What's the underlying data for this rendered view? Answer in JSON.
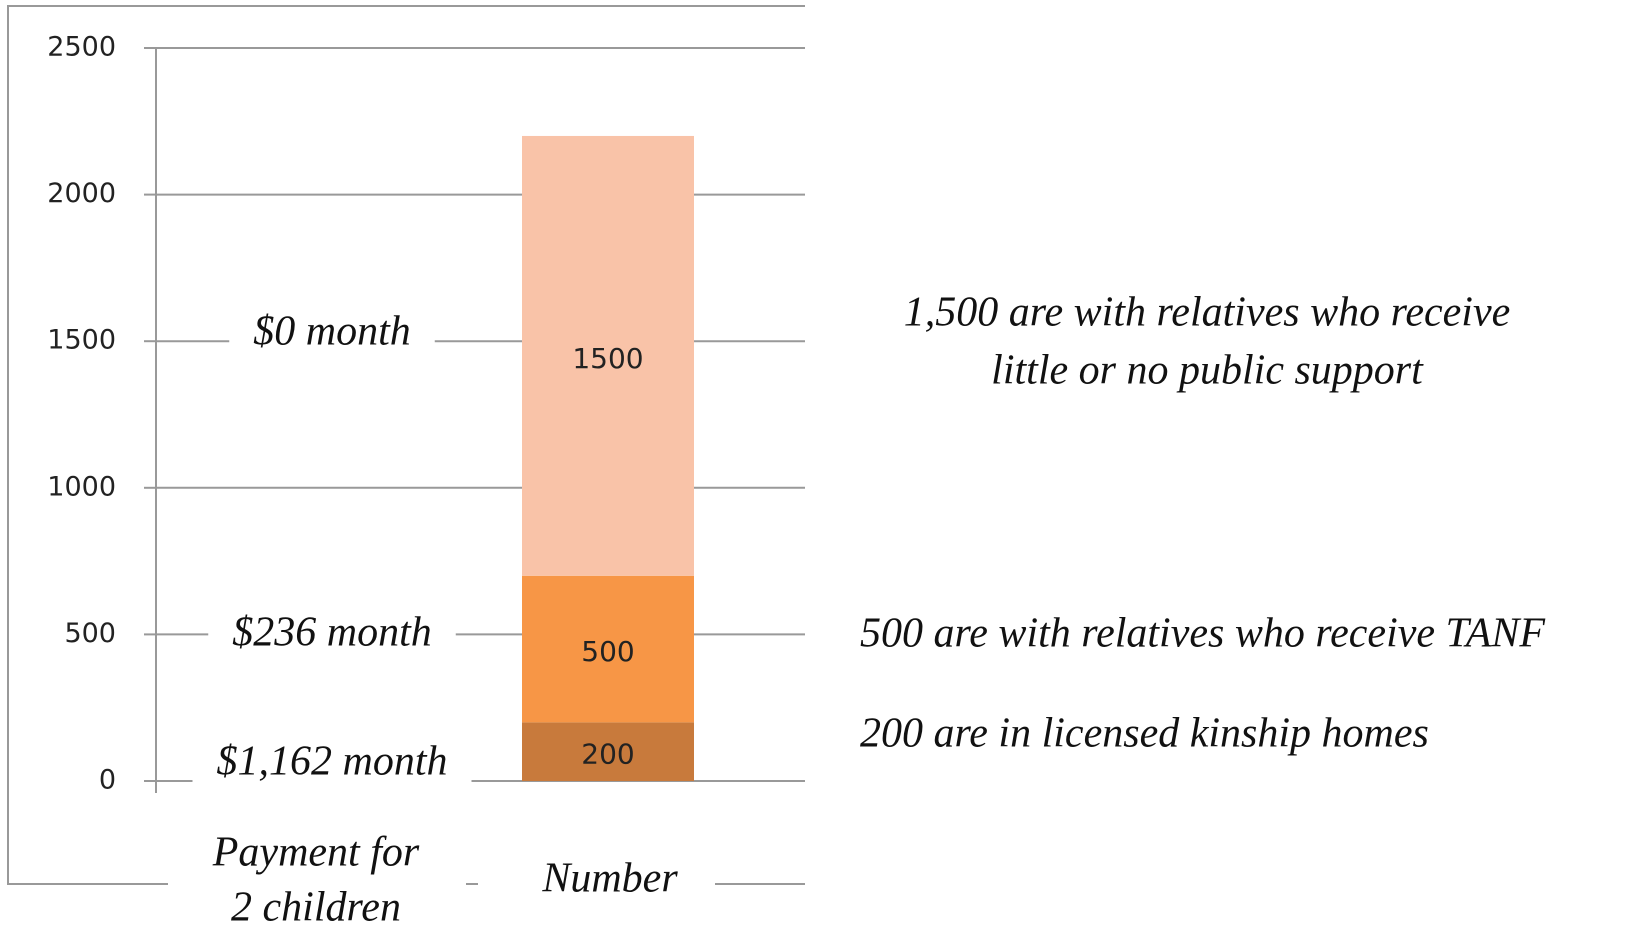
{
  "chart_data": {
    "type": "bar",
    "stacked": true,
    "categories": [
      "Number"
    ],
    "series": [
      {
        "color": "#c87a3c",
        "values": [
          200
        ]
      },
      {
        "color": "#f79646",
        "values": [
          500
        ]
      },
      {
        "color": "#f9c3a8",
        "values": [
          1500
        ]
      }
    ],
    "ylim": [
      0,
      2500
    ],
    "yticks": [
      0,
      500,
      1000,
      1500,
      2000,
      2500
    ],
    "grid": true,
    "x_label": [
      "Payment for",
      "2 children"
    ],
    "left_annotations": [
      "$1,162 month",
      "$236 month",
      "$0 month"
    ],
    "right_annotations": [
      [
        "200 are in licensed kinship homes"
      ],
      [
        "500 are with relatives who receive TANF"
      ],
      [
        "1,500 are with relatives who receive",
        "little or no public support"
      ]
    ]
  }
}
